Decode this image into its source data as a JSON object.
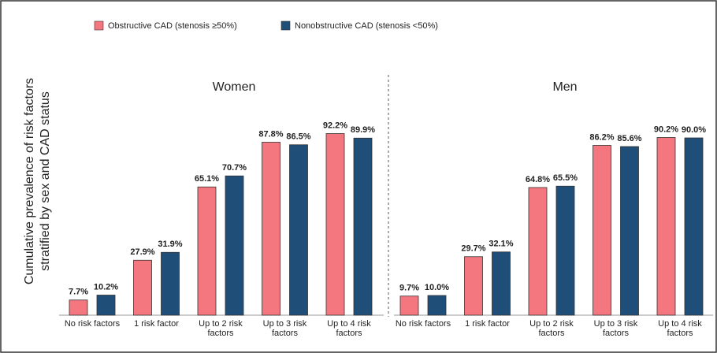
{
  "chart_data": {
    "type": "bar",
    "ylabel": [
      "Cumulative prevalence of risk factors",
      "stratified by sex and CAD status"
    ],
    "categories": [
      "No risk factors",
      "1 risk factor",
      "Up to 2 risk factors",
      "Up to 3 risk factors",
      "Up to 4 risk factors"
    ],
    "series": [
      {
        "name": "Obstructive CAD (stenosis ≥50%)",
        "color": "#f4777f"
      },
      {
        "name": "Nonobstructive CAD (stenosis <50%)",
        "color": "#1f4e79"
      }
    ],
    "panels": [
      {
        "title": "Women",
        "series": [
          {
            "values": [
              7.7,
              27.9,
              65.1,
              87.8,
              92.2
            ],
            "value_labels": [
              "7.7%",
              "27.9%",
              "65.1%",
              "87.8%",
              "92.2%"
            ]
          },
          {
            "values": [
              10.2,
              31.9,
              70.7,
              86.5,
              89.9
            ],
            "value_labels": [
              "10.2%",
              "31.9%",
              "70.7%",
              "86.5%",
              "89.9%"
            ]
          }
        ]
      },
      {
        "title": "Men",
        "series": [
          {
            "values": [
              9.7,
              29.7,
              64.8,
              86.2,
              90.2
            ],
            "value_labels": [
              "9.7%",
              "29.7%",
              "64.8%",
              "86.2%",
              "90.2%"
            ]
          },
          {
            "values": [
              10.0,
              32.1,
              65.5,
              85.6,
              90.0
            ],
            "value_labels": [
              "10.0%",
              "32.1%",
              "65.5%",
              "85.6%",
              "90.0%"
            ]
          }
        ]
      }
    ]
  }
}
